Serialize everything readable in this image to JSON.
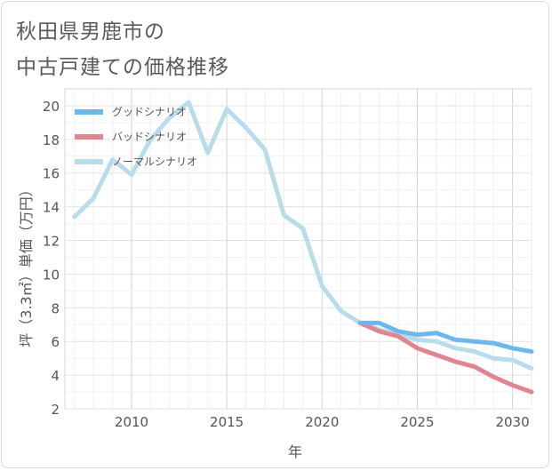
{
  "title": {
    "line1": "秋田県男鹿市の",
    "line2": "中古戸建ての価格推移"
  },
  "chart_data": {
    "type": "line",
    "xlabel": "年",
    "ylabel": "坪（3.3㎡）単価（万円）",
    "xlim": [
      2006.5,
      2031
    ],
    "ylim": [
      2,
      21
    ],
    "x_ticks": [
      2010,
      2015,
      2020,
      2025,
      2030
    ],
    "y_ticks": [
      2,
      4,
      6,
      8,
      10,
      12,
      14,
      16,
      18,
      20
    ],
    "grid": true,
    "legend_position": "top-left",
    "series": [
      {
        "name": "グッドシナリオ",
        "color": "#6cb8ec",
        "x": [
          2022,
          2023,
          2024,
          2025,
          2026,
          2027,
          2028,
          2029,
          2030,
          2031
        ],
        "y": [
          7.1,
          7.1,
          6.6,
          6.4,
          6.5,
          6.1,
          6.0,
          5.9,
          5.6,
          5.4
        ]
      },
      {
        "name": "バッドシナリオ",
        "color": "#e0868f",
        "x": [
          2022,
          2023,
          2024,
          2025,
          2026,
          2027,
          2028,
          2029,
          2030,
          2031
        ],
        "y": [
          7.1,
          6.6,
          6.3,
          5.6,
          5.2,
          4.8,
          4.5,
          3.9,
          3.4,
          3.0
        ]
      },
      {
        "name": "ノーマルシナリオ",
        "color": "#b8dcea",
        "x": [
          2007,
          2008,
          2009,
          2010,
          2011,
          2012,
          2013,
          2014,
          2015,
          2016,
          2017,
          2018,
          2019,
          2020,
          2021,
          2022,
          2023,
          2024,
          2025,
          2026,
          2027,
          2028,
          2029,
          2030,
          2031
        ],
        "y": [
          13.4,
          14.5,
          16.8,
          15.9,
          18.0,
          19.3,
          20.2,
          17.2,
          19.8,
          18.7,
          17.4,
          13.5,
          12.7,
          9.3,
          7.8,
          7.1,
          6.7,
          6.4,
          6.1,
          6.0,
          5.6,
          5.4,
          5.0,
          4.9,
          4.4
        ]
      }
    ]
  }
}
